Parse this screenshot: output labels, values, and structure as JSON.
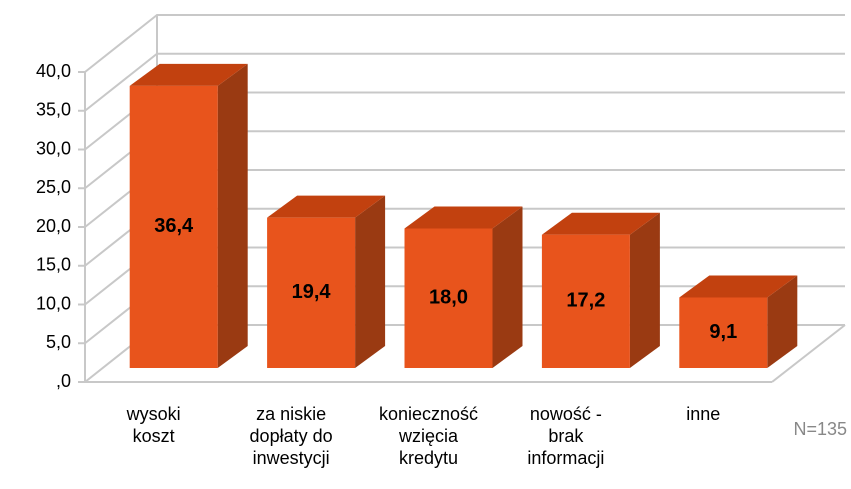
{
  "chart_data": {
    "type": "bar3d",
    "categories": [
      "wysoki\nkoszt",
      "za niskie\ndopłaty do\ninwestycji",
      "konieczność\nwzięcia\nkredytu",
      "nowość -\nbrak\ninformacji",
      "inne"
    ],
    "values": [
      36.4,
      19.4,
      18.0,
      17.2,
      9.1
    ],
    "value_labels": [
      "36,4",
      "19,4",
      "18,0",
      "17,2",
      "9,1"
    ],
    "colors": {
      "front": "#e8541c",
      "top": "#c2410f",
      "side": "#9a3a12"
    },
    "ylim": [
      0,
      40
    ],
    "yticks": [
      {
        "value": 0,
        "label": ",0"
      },
      {
        "value": 5,
        "label": "5,0"
      },
      {
        "value": 10,
        "label": "10,0"
      },
      {
        "value": 15,
        "label": "15,0"
      },
      {
        "value": 20,
        "label": "20,0"
      },
      {
        "value": 25,
        "label": "25,0"
      },
      {
        "value": 30,
        "label": "30,0"
      },
      {
        "value": 35,
        "label": "35,0"
      },
      {
        "value": 40,
        "label": "40,0"
      }
    ],
    "grid": true,
    "annotation": "N=135"
  }
}
